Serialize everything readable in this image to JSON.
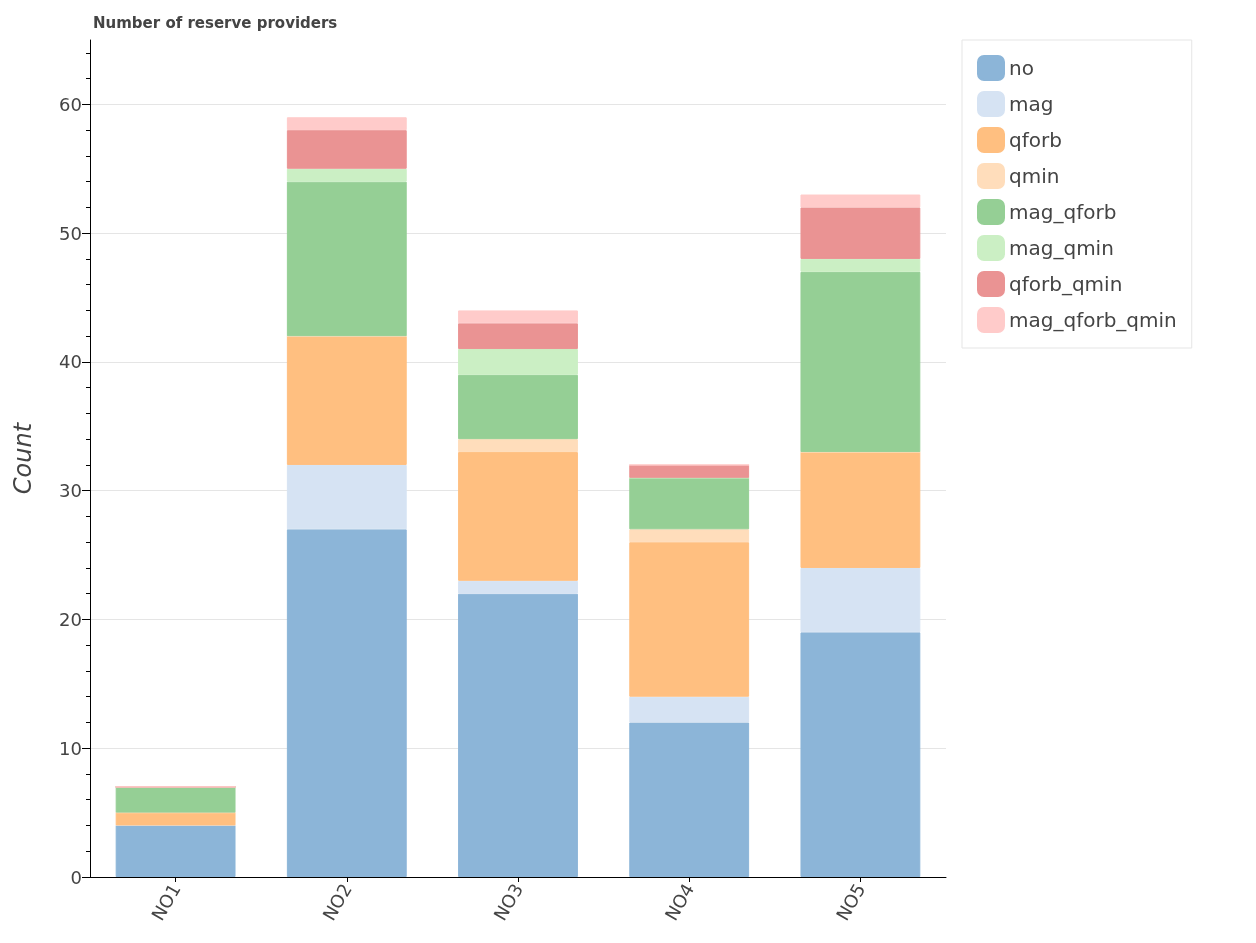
{
  "chart_data": {
    "type": "bar",
    "title": "Number of reserve providers",
    "ylabel": "Count",
    "categories": [
      "NO1",
      "NO2",
      "NO3",
      "NO4",
      "NO5"
    ],
    "stacked": true,
    "ylim": [
      0,
      65
    ],
    "yticks": [
      0,
      10,
      20,
      30,
      40,
      50,
      60
    ],
    "grid": "y",
    "legend": "top right",
    "series": [
      {
        "name": "no",
        "color": "#8cb5d8",
        "values": [
          4,
          27,
          22,
          12,
          19
        ]
      },
      {
        "name": "mag",
        "color": "#d6e3f3",
        "values": [
          0,
          5,
          1,
          2,
          5
        ]
      },
      {
        "name": "qforb",
        "color": "#ffbf80",
        "values": [
          1,
          10,
          10,
          12,
          9
        ]
      },
      {
        "name": "qmin",
        "color": "#ffddbb",
        "values": [
          0,
          0,
          1,
          1,
          0
        ]
      },
      {
        "name": "mag_qforb",
        "color": "#95cf95",
        "values": [
          2,
          12,
          5,
          4,
          14
        ]
      },
      {
        "name": "mag_qmin",
        "color": "#cbefc4",
        "values": [
          0,
          1,
          2,
          0,
          1
        ]
      },
      {
        "name": "qforb_qmin",
        "color": "#ea9393",
        "values": [
          0,
          3,
          2,
          1,
          4
        ]
      },
      {
        "name": "mag_qforb_qmin",
        "color": "#ffcbca",
        "values": [
          0,
          1,
          1,
          0,
          1
        ]
      }
    ]
  }
}
